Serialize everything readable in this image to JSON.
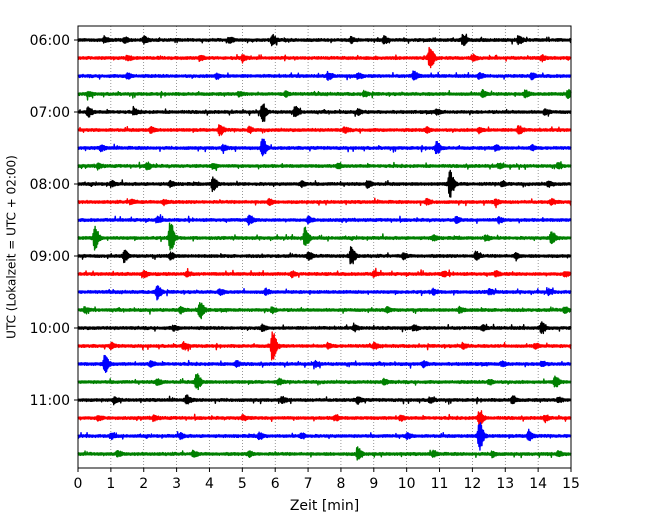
{
  "chart_data": {
    "type": "line",
    "title": "",
    "xlabel": "Zeit  [min]",
    "ylabel": "UTC (Lokalzeit = UTC + 02:00)",
    "xlim": [
      0,
      15
    ],
    "x_ticks": [
      0,
      1,
      2,
      3,
      4,
      5,
      6,
      7,
      8,
      9,
      10,
      11,
      12,
      13,
      14,
      15
    ],
    "x_tick_labels": [
      "0",
      "1",
      "2",
      "3",
      "4",
      "5",
      "6",
      "7",
      "8",
      "9",
      "10",
      "11",
      "12",
      "13",
      "14",
      "15"
    ],
    "grid": "vertical dotted",
    "trace_interval_min": 15,
    "trace_colors": [
      "#000000",
      "#ff0000",
      "#0000ff",
      "#008000"
    ],
    "y_tick_labels": [
      {
        "trace": 0,
        "label": "06:00"
      },
      {
        "trace": 4,
        "label": "07:00"
      },
      {
        "trace": 8,
        "label": "08:00"
      },
      {
        "trace": 12,
        "label": "09:00"
      },
      {
        "trace": 16,
        "label": "10:00"
      },
      {
        "trace": 20,
        "label": "11:00"
      }
    ],
    "series": [
      {
        "start": "06:00",
        "color": "#000000",
        "events": [
          [
            0.8,
            0.15
          ],
          [
            1.4,
            0.15
          ],
          [
            2.0,
            0.2
          ],
          [
            4.6,
            0.15
          ],
          [
            5.9,
            0.3
          ],
          [
            8.3,
            0.15
          ],
          [
            9.3,
            0.2
          ],
          [
            11.7,
            0.3
          ],
          [
            13.4,
            0.25
          ]
        ]
      },
      {
        "start": "06:15",
        "color": "#ff0000",
        "events": [
          [
            1.5,
            0.15
          ],
          [
            3.7,
            0.15
          ],
          [
            5.0,
            0.15
          ],
          [
            10.7,
            0.75
          ],
          [
            12.0,
            0.15
          ],
          [
            14.1,
            0.15
          ]
        ]
      },
      {
        "start": "06:30",
        "color": "#0000ff",
        "events": [
          [
            1.5,
            0.15
          ],
          [
            4.2,
            0.15
          ],
          [
            7.6,
            0.2
          ],
          [
            8.5,
            0.15
          ],
          [
            10.2,
            0.3
          ],
          [
            12.2,
            0.15
          ],
          [
            13.8,
            0.15
          ]
        ]
      },
      {
        "start": "06:45",
        "color": "#008000",
        "events": [
          [
            0.3,
            0.15
          ],
          [
            4.9,
            0.15
          ],
          [
            6.3,
            0.15
          ],
          [
            8.7,
            0.15
          ],
          [
            12.3,
            0.2
          ],
          [
            13.6,
            0.2
          ],
          [
            14.9,
            0.25
          ]
        ]
      },
      {
        "start": "07:00",
        "color": "#000000",
        "events": [
          [
            0.3,
            0.3
          ],
          [
            1.7,
            0.15
          ],
          [
            5.6,
            0.55
          ],
          [
            6.6,
            0.3
          ],
          [
            8.5,
            0.15
          ],
          [
            10.9,
            0.15
          ],
          [
            14.2,
            0.15
          ]
        ]
      },
      {
        "start": "07:15",
        "color": "#ff0000",
        "events": [
          [
            2.2,
            0.15
          ],
          [
            4.3,
            0.3
          ],
          [
            5.2,
            0.15
          ],
          [
            8.1,
            0.15
          ],
          [
            10.6,
            0.15
          ],
          [
            12.2,
            0.15
          ],
          [
            13.4,
            0.25
          ]
        ]
      },
      {
        "start": "07:30",
        "color": "#0000ff",
        "events": [
          [
            0.7,
            0.15
          ],
          [
            4.4,
            0.15
          ],
          [
            5.6,
            0.6
          ],
          [
            10.9,
            0.35
          ],
          [
            12.7,
            0.15
          ],
          [
            13.8,
            0.15
          ]
        ]
      },
      {
        "start": "07:45",
        "color": "#008000",
        "events": [
          [
            0.6,
            0.15
          ],
          [
            2.1,
            0.2
          ],
          [
            4.1,
            0.15
          ],
          [
            7.9,
            0.15
          ],
          [
            12.8,
            0.15
          ],
          [
            14.6,
            0.15
          ]
        ]
      },
      {
        "start": "08:00",
        "color": "#000000",
        "events": [
          [
            1.0,
            0.15
          ],
          [
            2.8,
            0.15
          ],
          [
            4.1,
            0.45
          ],
          [
            6.8,
            0.15
          ],
          [
            8.8,
            0.2
          ],
          [
            11.3,
            0.9
          ],
          [
            12.9,
            0.15
          ],
          [
            14.3,
            0.15
          ]
        ]
      },
      {
        "start": "08:15",
        "color": "#ff0000",
        "events": [
          [
            1.6,
            0.15
          ],
          [
            2.6,
            0.15
          ],
          [
            5.8,
            0.15
          ],
          [
            10.6,
            0.15
          ],
          [
            12.7,
            0.15
          ],
          [
            14.4,
            0.15
          ]
        ]
      },
      {
        "start": "08:30",
        "color": "#0000ff",
        "events": [
          [
            2.4,
            0.15
          ],
          [
            5.2,
            0.25
          ],
          [
            7.0,
            0.2
          ],
          [
            11.5,
            0.15
          ],
          [
            12.8,
            0.15
          ]
        ]
      },
      {
        "start": "08:45",
        "color": "#008000",
        "events": [
          [
            0.5,
            0.7
          ],
          [
            2.8,
            1.0
          ],
          [
            6.9,
            0.6
          ],
          [
            10.8,
            0.15
          ],
          [
            12.4,
            0.15
          ],
          [
            14.4,
            0.4
          ]
        ]
      },
      {
        "start": "09:00",
        "color": "#000000",
        "events": [
          [
            1.4,
            0.35
          ],
          [
            2.8,
            0.2
          ],
          [
            7.0,
            0.25
          ],
          [
            8.3,
            0.6
          ],
          [
            9.9,
            0.15
          ],
          [
            12.1,
            0.25
          ],
          [
            13.3,
            0.15
          ]
        ]
      },
      {
        "start": "09:15",
        "color": "#ff0000",
        "events": [
          [
            2.0,
            0.15
          ],
          [
            3.3,
            0.15
          ],
          [
            6.5,
            0.15
          ],
          [
            9.0,
            0.15
          ],
          [
            11.1,
            0.15
          ],
          [
            12.7,
            0.15
          ],
          [
            14.8,
            0.15
          ]
        ]
      },
      {
        "start": "09:30",
        "color": "#0000ff",
        "events": [
          [
            2.4,
            0.45
          ],
          [
            4.3,
            0.15
          ],
          [
            5.7,
            0.15
          ],
          [
            10.8,
            0.15
          ],
          [
            12.5,
            0.15
          ],
          [
            14.3,
            0.15
          ]
        ]
      },
      {
        "start": "09:45",
        "color": "#008000",
        "events": [
          [
            0.2,
            0.15
          ],
          [
            3.1,
            0.2
          ],
          [
            3.7,
            0.55
          ],
          [
            5.9,
            0.15
          ],
          [
            9.4,
            0.15
          ],
          [
            11.6,
            0.15
          ],
          [
            14.8,
            0.15
          ]
        ]
      },
      {
        "start": "10:00",
        "color": "#000000",
        "events": [
          [
            2.9,
            0.15
          ],
          [
            5.6,
            0.15
          ],
          [
            8.4,
            0.15
          ],
          [
            10.2,
            0.15
          ],
          [
            12.3,
            0.15
          ],
          [
            14.1,
            0.35
          ]
        ]
      },
      {
        "start": "10:15",
        "color": "#ff0000",
        "events": [
          [
            1.0,
            0.15
          ],
          [
            3.2,
            0.2
          ],
          [
            5.9,
            0.95
          ],
          [
            7.6,
            0.15
          ],
          [
            9.0,
            0.15
          ],
          [
            11.7,
            0.15
          ],
          [
            13.9,
            0.15
          ]
        ]
      },
      {
        "start": "10:30",
        "color": "#0000ff",
        "events": [
          [
            0.8,
            0.55
          ],
          [
            2.2,
            0.15
          ],
          [
            4.8,
            0.15
          ],
          [
            7.2,
            0.15
          ],
          [
            10.5,
            0.15
          ],
          [
            12.9,
            0.15
          ],
          [
            14.1,
            0.15
          ]
        ]
      },
      {
        "start": "10:45",
        "color": "#008000",
        "events": [
          [
            2.4,
            0.2
          ],
          [
            3.6,
            0.55
          ],
          [
            6.1,
            0.15
          ],
          [
            9.3,
            0.15
          ],
          [
            12.5,
            0.15
          ],
          [
            14.5,
            0.35
          ]
        ]
      },
      {
        "start": "11:00",
        "color": "#000000",
        "events": [
          [
            1.1,
            0.15
          ],
          [
            3.3,
            0.25
          ],
          [
            6.2,
            0.15
          ],
          [
            8.5,
            0.2
          ],
          [
            10.7,
            0.15
          ],
          [
            13.2,
            0.2
          ],
          [
            14.6,
            0.15
          ]
        ]
      },
      {
        "start": "11:15",
        "color": "#ff0000",
        "events": [
          [
            0.6,
            0.15
          ],
          [
            2.3,
            0.15
          ],
          [
            5.0,
            0.15
          ],
          [
            7.8,
            0.15
          ],
          [
            9.8,
            0.15
          ],
          [
            12.2,
            0.45
          ],
          [
            14.2,
            0.15
          ]
        ]
      },
      {
        "start": "11:30",
        "color": "#0000ff",
        "events": [
          [
            1.0,
            0.15
          ],
          [
            3.1,
            0.15
          ],
          [
            5.5,
            0.2
          ],
          [
            6.8,
            0.15
          ],
          [
            10.0,
            0.15
          ],
          [
            12.2,
            1.0
          ],
          [
            13.7,
            0.35
          ]
        ]
      },
      {
        "start": "11:45",
        "color": "#008000",
        "events": [
          [
            1.2,
            0.15
          ],
          [
            3.5,
            0.15
          ],
          [
            5.2,
            0.15
          ],
          [
            8.5,
            0.4
          ],
          [
            10.8,
            0.15
          ],
          [
            12.6,
            0.15
          ],
          [
            14.6,
            0.15
          ]
        ]
      }
    ]
  }
}
